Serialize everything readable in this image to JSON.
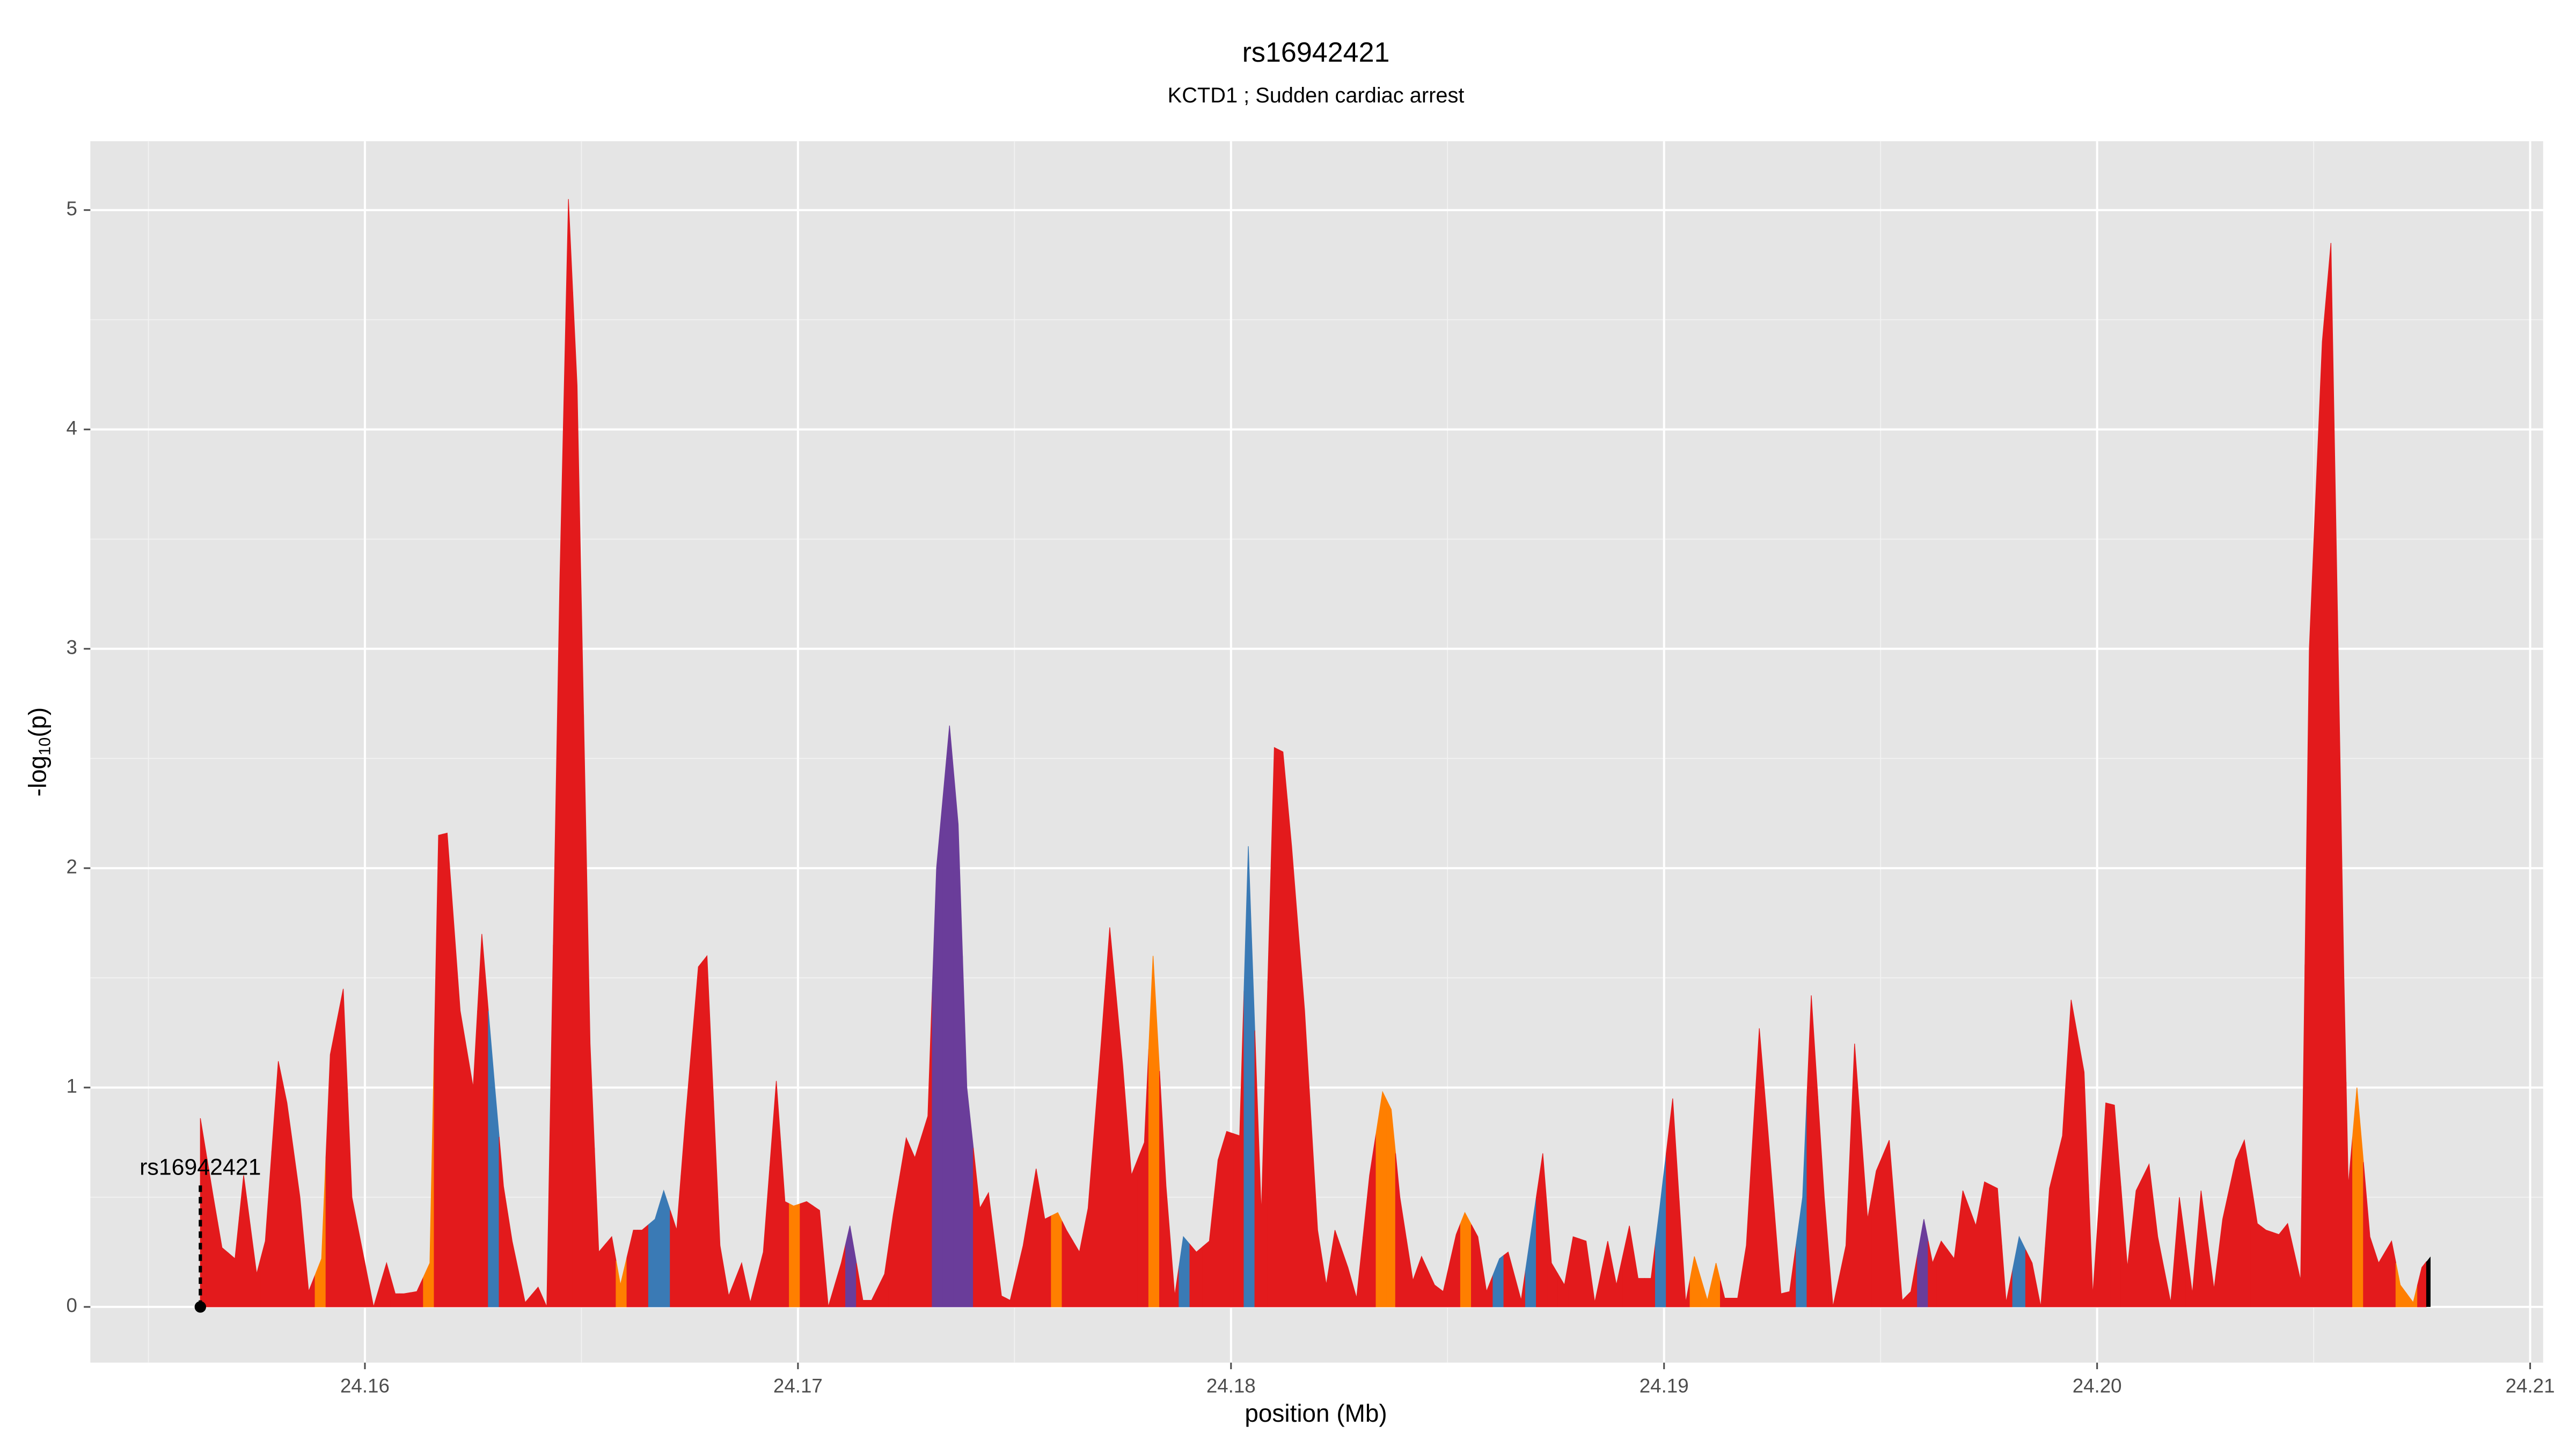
{
  "chart_data": {
    "type": "area",
    "title": "rs16942421",
    "subtitle": "KCTD1 ; Sudden cardiac arrest",
    "xlabel": "position (Mb)",
    "ylabel": {
      "base": "-log",
      "sub": "10",
      "rest": "(p)"
    },
    "xlim": [
      24.15366,
      24.2103
    ],
    "ylim": [
      -0.254,
      5.314
    ],
    "xticks": [
      24.16,
      24.17,
      24.18,
      24.19,
      {
        "value": 24.2,
        "label": "24.20"
      },
      24.21
    ],
    "yticks": [
      0,
      1,
      2,
      3,
      4,
      5
    ],
    "xminor": [
      24.155,
      24.165,
      24.175,
      24.185,
      24.195,
      24.205
    ],
    "yminor": [
      0.5,
      1.5,
      2.5,
      3.5,
      4.5
    ],
    "grid": true,
    "annotation": {
      "label": "rs16942421",
      "x": 24.1562,
      "y": 0
    },
    "x": [
      24.1562,
      24.1565,
      24.1567,
      24.157,
      24.1572,
      24.1575,
      24.1577,
      24.158,
      24.1582,
      24.1585,
      24.1587,
      24.159,
      24.1592,
      24.1595,
      24.1597,
      24.16,
      24.1602,
      24.1605,
      24.1607,
      24.1609,
      24.1612,
      24.1615,
      24.1617,
      24.1619,
      24.1622,
      24.1625,
      24.1627,
      24.163,
      24.1632,
      24.1634,
      24.1637,
      24.164,
      24.1642,
      24.1645,
      24.1647,
      24.1649,
      24.1652,
      24.1654,
      24.1657,
      24.1659,
      24.1662,
      24.1664,
      24.1667,
      24.1669,
      24.1672,
      24.1674,
      24.1677,
      24.1679,
      24.1682,
      24.1684,
      24.1687,
      24.1689,
      24.1692,
      24.1695,
      24.1697,
      24.1699,
      24.1702,
      24.1705,
      24.1707,
      24.171,
      24.1712,
      24.1715,
      24.1717,
      24.172,
      24.1722,
      24.1725,
      24.1727,
      24.173,
      24.1732,
      24.1735,
      24.1737,
      24.1739,
      24.1742,
      24.1744,
      24.1747,
      24.1749,
      24.1752,
      24.1755,
      24.1757,
      24.176,
      24.1762,
      24.1765,
      24.1767,
      24.177,
      24.1772,
      24.1775,
      24.1777,
      24.178,
      24.1782,
      24.1785,
      24.1787,
      24.1789,
      24.1792,
      24.1795,
      24.1797,
      24.1799,
      24.1802,
      24.1804,
      24.1807,
      24.181,
      24.1812,
      24.1814,
      24.1817,
      24.182,
      24.1822,
      24.1824,
      24.1827,
      24.1829,
      24.1832,
      24.1835,
      24.1837,
      24.1839,
      24.1842,
      24.1844,
      24.1847,
      24.1849,
      24.1852,
      24.1854,
      24.1857,
      24.1859,
      24.1862,
      24.1864,
      24.1867,
      24.1869,
      24.1872,
      24.1874,
      24.1877,
      24.1879,
      24.1882,
      24.1884,
      24.1887,
      24.1889,
      24.1892,
      24.1894,
      24.1897,
      24.1899,
      24.1902,
      24.1905,
      24.1907,
      24.191,
      24.1912,
      24.1914,
      24.1917,
      24.1919,
      24.1922,
      24.1924,
      24.1927,
      24.1929,
      24.1932,
      24.1934,
      24.1937,
      24.1939,
      24.1942,
      24.1944,
      24.1947,
      24.1949,
      24.1952,
      24.1955,
      24.1957,
      24.196,
      24.1962,
      24.1964,
      24.1967,
      24.1969,
      24.1972,
      24.1974,
      24.1977,
      24.1979,
      24.1982,
      24.1985,
      24.1987,
      24.1989,
      24.1992,
      24.1994,
      24.1997,
      24.1999,
      24.2002,
      24.2004,
      24.2007,
      24.2009,
      24.2012,
      24.2014,
      24.2017,
      24.2019,
      24.2022,
      24.2024,
      24.2027,
      24.2029,
      24.2032,
      24.2034,
      24.2037,
      24.2039,
      24.2042,
      24.2044,
      24.2047,
      24.2049,
      24.2052,
      24.2054,
      24.2057,
      24.2058,
      24.206,
      24.2063,
      24.2065,
      24.2068,
      24.207,
      24.2073,
      24.2075,
      24.2077
    ],
    "values": [
      0.86,
      0.5,
      0.27,
      0.22,
      0.6,
      0.15,
      0.3,
      1.12,
      0.93,
      0.5,
      0.07,
      0.22,
      1.15,
      1.45,
      0.5,
      0.2,
      0,
      0.2,
      0.06,
      0.06,
      0.07,
      0.2,
      2.15,
      2.16,
      1.35,
      1,
      1.7,
      1,
      0.55,
      0.3,
      0.02,
      0.09,
      0,
      3.3,
      5.05,
      4.2,
      1.2,
      0.25,
      0.32,
      0.1,
      0.35,
      0.35,
      0.4,
      0.53,
      0.35,
      0.85,
      1.55,
      1.6,
      0.28,
      0.05,
      0.2,
      0.02,
      0.25,
      1.03,
      0.48,
      0.46,
      0.48,
      0.44,
      0,
      0.2,
      0.37,
      0.03,
      0.03,
      0.15,
      0.42,
      0.77,
      0.68,
      0.87,
      2,
      2.65,
      2.2,
      1,
      0.45,
      0.52,
      0.05,
      0.03,
      0.28,
      0.63,
      0.4,
      0.43,
      0.35,
      0.25,
      0.45,
      1.2,
      1.73,
      1.1,
      0.6,
      0.75,
      1.6,
      0.55,
      0.05,
      0.32,
      0.25,
      0.3,
      0.67,
      0.8,
      0.78,
      2.1,
      0.42,
      2.55,
      2.53,
      2.1,
      1.35,
      0.35,
      0.1,
      0.35,
      0.18,
      0.04,
      0.6,
      0.98,
      0.9,
      0.5,
      0.12,
      0.23,
      0.1,
      0.07,
      0.33,
      0.43,
      0.32,
      0.07,
      0.22,
      0.25,
      0.03,
      0.3,
      0.7,
      0.2,
      0.1,
      0.32,
      0.3,
      0.02,
      0.3,
      0.1,
      0.37,
      0.13,
      0.13,
      0.45,
      0.95,
      0.02,
      0.23,
      0.03,
      0.2,
      0.04,
      0.04,
      0.28,
      1.27,
      0.8,
      0.06,
      0.07,
      0.5,
      1.42,
      0.5,
      0,
      0.28,
      1.2,
      0.4,
      0.62,
      0.76,
      0.03,
      0.07,
      0.4,
      0.2,
      0.3,
      0.22,
      0.53,
      0.37,
      0.57,
      0.54,
      0.02,
      0.32,
      0.2,
      0,
      0.54,
      0.78,
      1.4,
      1.07,
      0.05,
      0.93,
      0.92,
      0.18,
      0.53,
      0.65,
      0.32,
      0.02,
      0.5,
      0.06,
      0.53,
      0.08,
      0.4,
      0.67,
      0.76,
      0.38,
      0.35,
      0.33,
      0.38,
      0.12,
      3,
      4.4,
      4.85,
      1.5,
      0.55,
      1,
      0.32,
      0.2,
      0.3,
      0.1,
      0.02,
      0.18,
      0.23
    ],
    "colors": [
      "#e31a1c",
      "#e31a1c",
      "#e31a1c",
      "#e31a1c",
      "#e31a1c",
      "#e31a1c",
      "#e31a1c",
      "#e31a1c",
      "#e31a1c",
      "#e31a1c",
      "#e31a1c",
      "#ff7f00",
      "#e31a1c",
      "#e31a1c",
      "#e31a1c",
      "#e31a1c",
      "#e31a1c",
      "#e31a1c",
      "#e31a1c",
      "#e31a1c",
      "#e31a1c",
      "#ff7f00",
      "#e31a1c",
      "#e31a1c",
      "#e31a1c",
      "#e31a1c",
      "#e31a1c",
      "#3a7ab5",
      "#e31a1c",
      "#e31a1c",
      "#e31a1c",
      "#e31a1c",
      "#e31a1c",
      "#e31a1c",
      "#e31a1c",
      "#e31a1c",
      "#e31a1c",
      "#e31a1c",
      "#e31a1c",
      "#ff7f00",
      "#e31a1c",
      "#e31a1c",
      "#3a7ab5",
      "#3a7ab5",
      "#e31a1c",
      "#e31a1c",
      "#e31a1c",
      "#e31a1c",
      "#e31a1c",
      "#e31a1c",
      "#e31a1c",
      "#e31a1c",
      "#e31a1c",
      "#e31a1c",
      "#e31a1c",
      "#ff7f00",
      "#e31a1c",
      "#e31a1c",
      "#e31a1c",
      "#e31a1c",
      "#6a3d9a",
      "#e31a1c",
      "#e31a1c",
      "#e31a1c",
      "#e31a1c",
      "#e31a1c",
      "#e31a1c",
      "#e31a1c",
      "#6a3d9a",
      "#6a3d9a",
      "#6a3d9a",
      "#6a3d9a",
      "#e31a1c",
      "#e31a1c",
      "#e31a1c",
      "#e31a1c",
      "#e31a1c",
      "#e31a1c",
      "#e31a1c",
      "#ff7f00",
      "#e31a1c",
      "#e31a1c",
      "#e31a1c",
      "#e31a1c",
      "#e31a1c",
      "#e31a1c",
      "#e31a1c",
      "#e31a1c",
      "#ff7f00",
      "#e31a1c",
      "#e31a1c",
      "#3a7ab5",
      "#e31a1c",
      "#e31a1c",
      "#e31a1c",
      "#e31a1c",
      "#e31a1c",
      "#3a7ab5",
      "#e31a1c",
      "#e31a1c",
      "#e31a1c",
      "#e31a1c",
      "#e31a1c",
      "#e31a1c",
      "#e31a1c",
      "#e31a1c",
      "#e31a1c",
      "#e31a1c",
      "#e31a1c",
      "#ff7f00",
      "#ff7f00",
      "#e31a1c",
      "#e31a1c",
      "#e31a1c",
      "#e31a1c",
      "#e31a1c",
      "#e31a1c",
      "#ff7f00",
      "#e31a1c",
      "#e31a1c",
      "#3a7ab5",
      "#e31a1c",
      "#e31a1c",
      "#3a7ab5",
      "#e31a1c",
      "#e31a1c",
      "#e31a1c",
      "#e31a1c",
      "#e31a1c",
      "#e31a1c",
      "#e31a1c",
      "#e31a1c",
      "#e31a1c",
      "#e31a1c",
      "#e31a1c",
      "#3a7ab5",
      "#e31a1c",
      "#e31a1c",
      "#ff7f00",
      "#ff7f00",
      "#ff7f00",
      "#e31a1c",
      "#e31a1c",
      "#e31a1c",
      "#e31a1c",
      "#e31a1c",
      "#e31a1c",
      "#e31a1c",
      "#3a7ab5",
      "#e31a1c",
      "#e31a1c",
      "#e31a1c",
      "#e31a1c",
      "#e31a1c",
      "#e31a1c",
      "#e31a1c",
      "#e31a1c",
      "#e31a1c",
      "#e31a1c",
      "#6a3d9a",
      "#e31a1c",
      "#e31a1c",
      "#e31a1c",
      "#e31a1c",
      "#e31a1c",
      "#e31a1c",
      "#e31a1c",
      "#e31a1c",
      "#3a7ab5",
      "#e31a1c",
      "#e31a1c",
      "#e31a1c",
      "#e31a1c",
      "#e31a1c",
      "#e31a1c",
      "#e31a1c",
      "#e31a1c",
      "#e31a1c",
      "#e31a1c",
      "#e31a1c",
      "#e31a1c",
      "#e31a1c",
      "#e31a1c",
      "#e31a1c",
      "#e31a1c",
      "#e31a1c",
      "#e31a1c",
      "#e31a1c",
      "#e31a1c",
      "#e31a1c",
      "#e31a1c",
      "#e31a1c",
      "#e31a1c",
      "#e31a1c",
      "#e31a1c",
      "#e31a1c",
      "#e31a1c",
      "#e31a1c",
      "#e31a1c",
      "#e31a1c",
      "#ff7f00",
      "#e31a1c",
      "#e31a1c",
      "#e31a1c",
      "#ff7f00",
      "#ff7f00",
      "#e31a1c"
    ]
  }
}
